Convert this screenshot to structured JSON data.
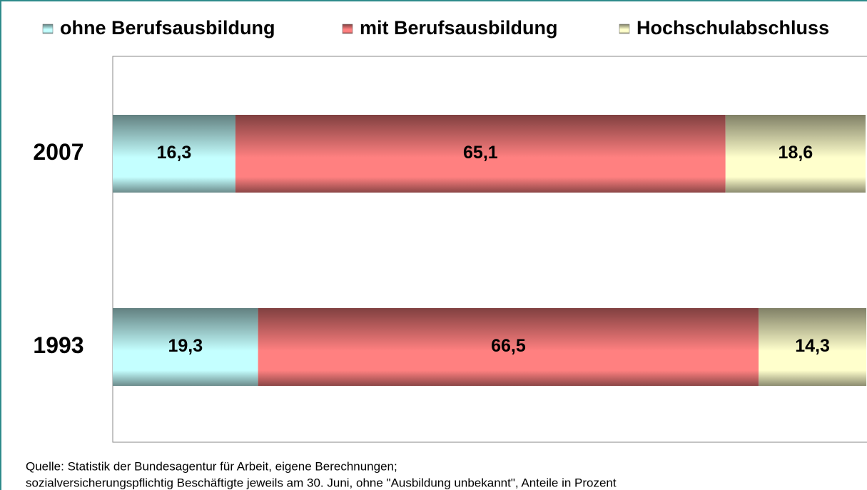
{
  "chart_data": {
    "type": "stacked-bar-horizontal",
    "categories": [
      "2007",
      "1993"
    ],
    "series": [
      {
        "name": "ohne Berufsausbildung",
        "color": "#c4ffff",
        "values": [
          16.3,
          19.3
        ],
        "value_labels": [
          "16,3",
          "19,3"
        ]
      },
      {
        "name": "mit Berufsausbildung",
        "color": "#ff8080",
        "values": [
          65.1,
          66.5
        ],
        "value_labels": [
          "65,1",
          "66,5"
        ]
      },
      {
        "name": "Hochschulabschluss",
        "color": "#ffffcc",
        "values": [
          18.6,
          14.3
        ],
        "value_labels": [
          "18,6",
          "14,3"
        ]
      }
    ],
    "xlim": [
      0,
      100
    ],
    "legend": "top",
    "notes": [
      "Quelle: Statistik der Bundesagentur für Arbeit, eigene Berechnungen;",
      "sozialversicherungspflichtig Beschäftigte jeweils am 30. Juni, ohne \"Ausbildung unbekannt\", Anteile in Prozent"
    ]
  }
}
